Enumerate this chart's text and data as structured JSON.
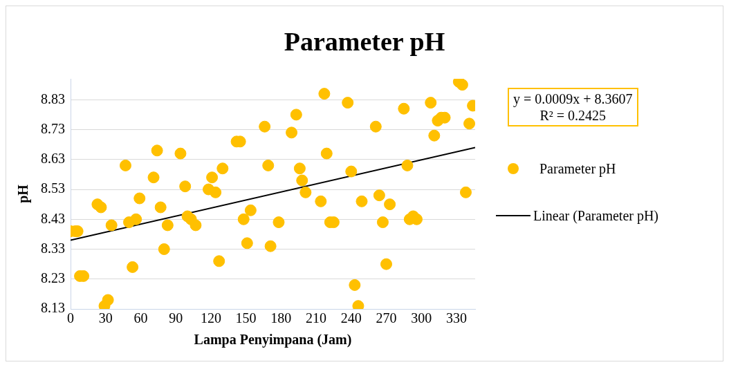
{
  "chart_data": {
    "type": "scatter",
    "title": "Parameter pH",
    "xlabel": "Lampa Penyimpana (Jam)",
    "ylabel": "pH",
    "xlim": [
      0,
      346
    ],
    "xticks": [
      0,
      30,
      60,
      90,
      120,
      150,
      180,
      210,
      240,
      270,
      300,
      330
    ],
    "ylim": [
      8.13,
      8.9
    ],
    "yticks": [
      8.13,
      8.23,
      8.33,
      8.43,
      8.53,
      8.63,
      8.73,
      8.83
    ],
    "grid": "y",
    "legend": "right",
    "marker": "circle",
    "annotations": [
      "y = 0.0009x + 8.3607",
      "R² = 0.2425"
    ],
    "series": [
      {
        "name": "Parameter pH",
        "color": "#ffc000",
        "x": [
          0,
          4,
          6,
          8,
          11,
          23,
          26,
          29,
          32,
          35,
          47,
          50,
          53,
          56,
          59,
          71,
          74,
          77,
          80,
          83,
          94,
          98,
          100,
          103,
          107,
          118,
          121,
          124,
          127,
          130,
          142,
          145,
          148,
          151,
          154,
          166,
          169,
          171,
          178,
          189,
          193,
          196,
          198,
          201,
          214,
          217,
          219,
          222,
          225,
          237,
          240,
          243,
          246,
          249,
          261,
          264,
          267,
          270,
          273,
          285,
          288,
          290,
          293,
          296,
          308,
          311,
          314,
          317,
          320,
          332,
          335,
          338,
          341,
          344
        ],
        "values": [
          8.39,
          8.39,
          8.39,
          8.24,
          8.24,
          8.48,
          8.47,
          8.14,
          8.16,
          8.41,
          8.61,
          8.42,
          8.27,
          8.43,
          8.5,
          8.57,
          8.66,
          8.47,
          8.33,
          8.41,
          8.65,
          8.54,
          8.44,
          8.43,
          8.41,
          8.53,
          8.57,
          8.52,
          8.29,
          8.6,
          8.69,
          8.69,
          8.43,
          8.35,
          8.46,
          8.74,
          8.61,
          8.34,
          8.42,
          8.72,
          8.78,
          8.6,
          8.56,
          8.52,
          8.49,
          8.85,
          8.65,
          8.42,
          8.42,
          8.82,
          8.59,
          8.21,
          8.14,
          8.49,
          8.74,
          8.51,
          8.42,
          8.28,
          8.48,
          8.8,
          8.61,
          8.43,
          8.44,
          8.43,
          8.82,
          8.71,
          8.76,
          8.77,
          8.77,
          8.89,
          8.88,
          8.52,
          8.75,
          8.81
        ]
      },
      {
        "name": "Linear (Parameter pH)",
        "type": "line",
        "marker": "none",
        "color": "#000000",
        "x": [
          0,
          346
        ],
        "values": [
          8.36,
          8.67
        ]
      }
    ]
  }
}
